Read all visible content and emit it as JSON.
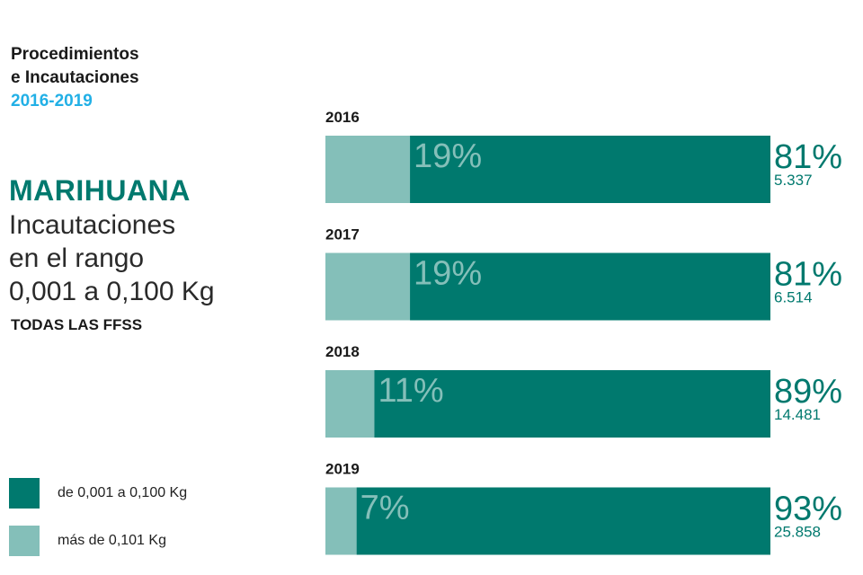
{
  "header": {
    "line1": "Procedimientos",
    "line2": "e Incautaciones",
    "years": "2016-2019"
  },
  "title": "MARIHUANA",
  "subtitle_lines": [
    "Incautaciones",
    "en el rango",
    "0,001 a 0,100 Kg"
  ],
  "agency": "TODAS LAS FFSS",
  "legend": [
    {
      "label": "de 0,001 a 0,100 Kg",
      "color": "#00796e"
    },
    {
      "label": "más de 0,101 Kg",
      "color": "#84bfb9"
    }
  ],
  "colors": {
    "dark": "#00796e",
    "light": "#84bfb9",
    "accent": "#22b0e6"
  },
  "chart_data": {
    "type": "bar",
    "orientation": "horizontal",
    "stacked": true,
    "percent": true,
    "categories": [
      "2016",
      "2017",
      "2018",
      "2019"
    ],
    "series": [
      {
        "name": "más de 0,101 Kg",
        "values": [
          19,
          19,
          11,
          7
        ],
        "labels": [
          "19%",
          "19%",
          "11%",
          "7%"
        ]
      },
      {
        "name": "de 0,001 a 0,100 Kg",
        "values": [
          81,
          81,
          89,
          93
        ],
        "labels": [
          "81%",
          "81%",
          "89%",
          "93%"
        ]
      }
    ],
    "counts": [
      "5.337",
      "6.514",
      "14.481",
      "25.858"
    ]
  }
}
